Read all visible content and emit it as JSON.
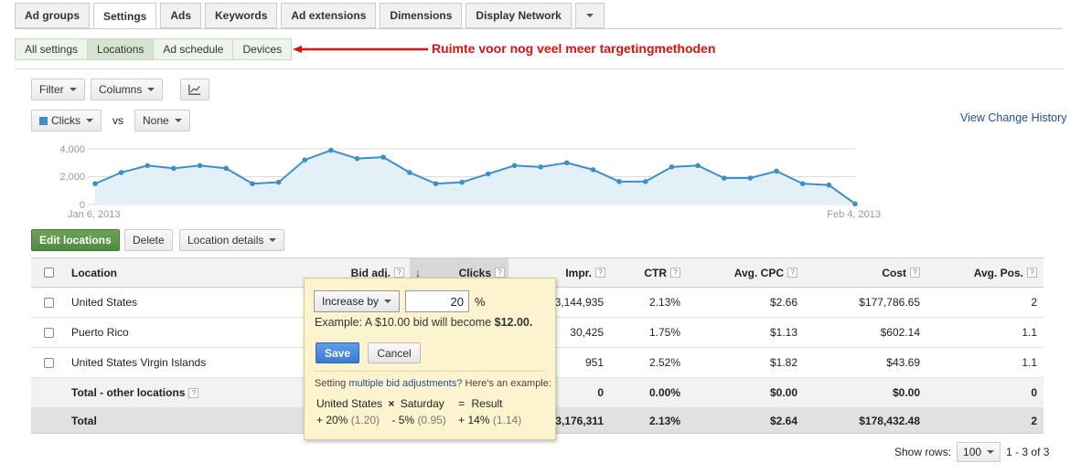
{
  "tabs": [
    "Ad groups",
    "Settings",
    "Ads",
    "Keywords",
    "Ad extensions",
    "Dimensions",
    "Display Network"
  ],
  "active_tab": "Settings",
  "subtabs": [
    "All settings",
    "Locations",
    "Ad schedule",
    "Devices"
  ],
  "annotation": "Ruimte voor nog veel meer targetingmethoden",
  "toolbar": {
    "filter": "Filter",
    "columns": "Columns"
  },
  "metric_selector": {
    "metric1": "Clicks",
    "vs": "vs",
    "metric2": "None"
  },
  "view_change_history": "View Change History",
  "chart_data": {
    "type": "area",
    "series": [
      {
        "name": "Clicks",
        "values": [
          1500,
          2300,
          2800,
          2600,
          2800,
          2600,
          1500,
          1600,
          3200,
          3900,
          3300,
          3400,
          2300,
          1500,
          1600,
          2200,
          2800,
          2700,
          3000,
          2500,
          1650,
          1650,
          2700,
          2800,
          1900,
          1900,
          2400,
          1500,
          1400,
          50
        ]
      }
    ],
    "yticks": [
      "4,000",
      "2,000",
      "0"
    ],
    "ylim": [
      0,
      4000
    ],
    "x_start_label": "Jan 6, 2013",
    "x_end_label": "Feb 4, 2013",
    "color": "#3d8fc6",
    "fill": "#e4f0f8"
  },
  "actions": {
    "edit": "Edit locations",
    "delete": "Delete",
    "details": "Location details"
  },
  "table": {
    "headers": {
      "location": "Location",
      "bid": "Bid adj.",
      "clicks": "Clicks",
      "impr": "Impr.",
      "ctr": "CTR",
      "cpc": "Avg. CPC",
      "cost": "Cost",
      "pos": "Avg. Pos."
    },
    "rows": [
      {
        "location": "United States",
        "impr": "3,144,935",
        "ctr": "2.13%",
        "cpc": "$2.66",
        "cost": "$177,786.65",
        "pos": "2"
      },
      {
        "location": "Puerto Rico",
        "impr": "30,425",
        "ctr": "1.75%",
        "cpc": "$1.13",
        "cost": "$602.14",
        "pos": "1.1"
      },
      {
        "location": "United States Virgin Islands",
        "impr": "951",
        "ctr": "2.52%",
        "cpc": "$1.82",
        "cost": "$43.69",
        "pos": "1.1"
      }
    ],
    "other": {
      "location": "Total - other locations",
      "impr": "0",
      "ctr": "0.00%",
      "cpc": "$0.00",
      "cost": "$0.00",
      "pos": "0"
    },
    "total": {
      "location": "Total",
      "impr": "3,176,311",
      "ctr": "2.13%",
      "cpc": "$2.64",
      "cost": "$178,432.48",
      "pos": "2"
    }
  },
  "popup": {
    "select": "Increase by",
    "value": "20",
    "percent": "%",
    "example_prefix": "Example: A $10.00 bid will become ",
    "example_value": "$12.00.",
    "save": "Save",
    "cancel": "Cancel",
    "note_prefix": "Setting ",
    "note_link": "multiple bid adjustments",
    "note_suffix": "? Here's an example:",
    "ex_a": "United States",
    "ex_times": "×",
    "ex_b": "Saturday",
    "ex_eq": "=",
    "ex_result": "Result",
    "ex_a_val": "+ 20%",
    "ex_a_mult": "(1.20)",
    "ex_b_val": "- 5%",
    "ex_b_mult": "(0.95)",
    "ex_r_val": "+ 14%",
    "ex_r_mult": "(1.14)"
  },
  "pagination": {
    "label": "Show rows:",
    "value": "100",
    "range": "1 - 3 of 3"
  }
}
